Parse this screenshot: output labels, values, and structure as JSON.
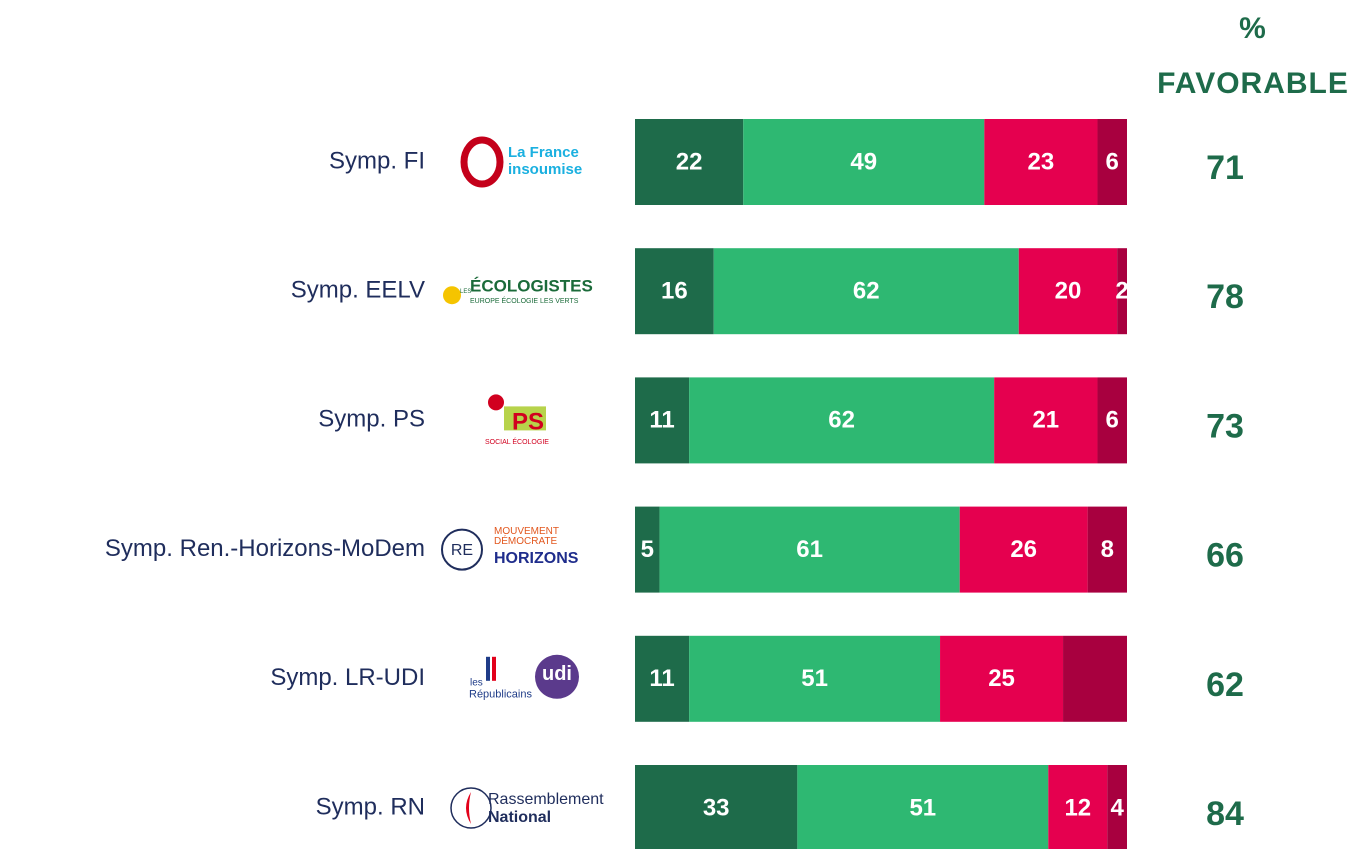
{
  "chart_data": {
    "type": "stacked-bar",
    "orientation": "horizontal",
    "column_header": [
      "%",
      "FAVORABLE"
    ],
    "categories": [
      "Symp. FI",
      "Symp. EELV",
      "Symp. PS",
      "Symp. Ren.-Horizons-MoDem",
      "Symp. LR-UDI",
      "Symp. RN"
    ],
    "logos": [
      [
        "La France",
        "insoumise"
      ],
      [
        "LES",
        "ÉCOLOGISTES",
        "EUROPE ÉCOLOGIE LES VERTS"
      ],
      [
        "PS",
        "SOCIAL ÉCOLOGIE"
      ],
      [
        "RE",
        "MOUVEMENT",
        "DÉMOCRATE",
        "HORIZONS"
      ],
      [
        "les",
        "Républicains",
        "udi"
      ],
      [
        "Rassemblement",
        "National"
      ]
    ],
    "xlim": [
      0,
      100
    ],
    "series": [
      {
        "color": "#1e6b4a",
        "values": [
          22,
          16,
          11,
          5,
          11,
          33
        ]
      },
      {
        "color": "#2eb872",
        "values": [
          49,
          62,
          62,
          61,
          51,
          51
        ]
      },
      {
        "color": "#e5004f",
        "values": [
          23,
          20,
          21,
          26,
          25,
          12
        ]
      },
      {
        "color": "#a8003f",
        "values": [
          6,
          2,
          6,
          8,
          13,
          4
        ],
        "value_labels": [
          "6",
          "2",
          "6",
          "8",
          null,
          "4"
        ]
      }
    ],
    "favorable": [
      71,
      78,
      73,
      66,
      62,
      84
    ]
  }
}
